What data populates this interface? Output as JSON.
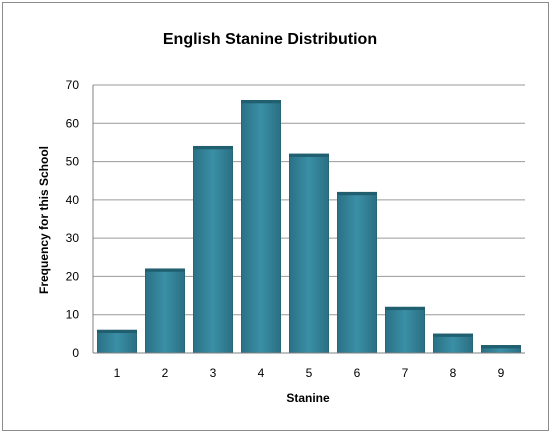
{
  "chart_data": {
    "type": "bar",
    "title": "English Stanine Distribution",
    "xlabel": "Stanine",
    "ylabel": "Frequency for this School",
    "categories": [
      "1",
      "2",
      "3",
      "4",
      "5",
      "6",
      "7",
      "8",
      "9"
    ],
    "values": [
      6,
      22,
      54,
      66,
      52,
      42,
      12,
      5,
      2
    ],
    "ylim": [
      0,
      70
    ],
    "yticks": [
      "0",
      "10",
      "20",
      "30",
      "40",
      "50",
      "60",
      "70"
    ],
    "grid": true,
    "legend": "none",
    "colors": {
      "bar": "#31849b",
      "bar_top": "#1f5f70",
      "gridline": "#9a9a9a",
      "frame": "#8c8c8c"
    }
  }
}
